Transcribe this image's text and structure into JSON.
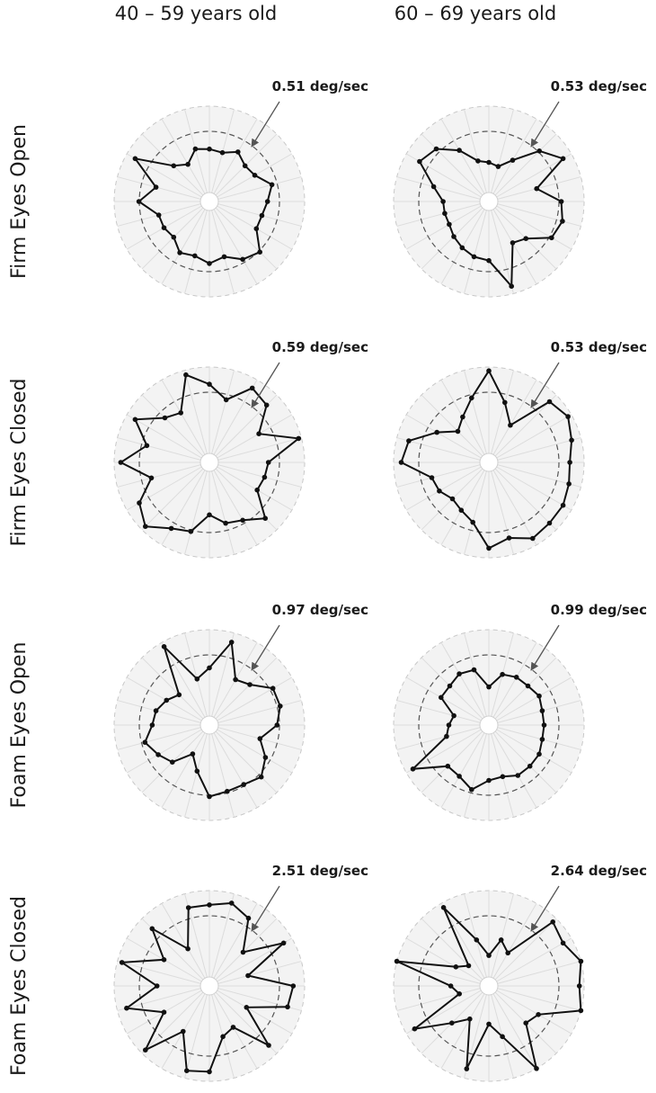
{
  "chart_data": {
    "type": "radar",
    "title": "",
    "columns": [
      "40 – 59 years old",
      "60 – 69 years old"
    ],
    "rows": [
      "Firm Eyes Open",
      "Firm Eyes Closed",
      "Foam Eyes Open",
      "Foam Eyes Closed"
    ],
    "grid": true,
    "inner_reference": "dashed circle",
    "panels": [
      {
        "row": "Firm Eyes Open",
        "column": "40 – 59 years old",
        "label": "0.51 deg/sec",
        "spokes": 24,
        "values": [
          0.55,
          0.53,
          0.6,
          0.53,
          0.55,
          0.68,
          0.61,
          0.57,
          0.57,
          0.75,
          0.7,
          0.6,
          0.65,
          0.59,
          0.62,
          0.53,
          0.55,
          0.55,
          0.74,
          0.58,
          0.9,
          0.53,
          0.45,
          0.57
        ]
      },
      {
        "row": "Firm Eyes Open",
        "column": "60 – 69 years old",
        "label": "0.53 deg/sec",
        "spokes": 24,
        "values": [
          0.41,
          0.38,
          0.5,
          0.75,
          0.9,
          0.52,
          0.76,
          0.8,
          0.76,
          0.55,
          0.5,
          0.92,
          0.62,
          0.6,
          0.56,
          0.52,
          0.48,
          0.48,
          0.48,
          0.6,
          0.84,
          0.78,
          0.62,
          0.44
        ]
      },
      {
        "row": "Firm Eyes Closed",
        "column": "40 – 59 years old",
        "label": "0.59 deg/sec",
        "spokes": 24,
        "values": [
          0.82,
          0.68,
          0.9,
          0.85,
          0.6,
          0.97,
          0.62,
          0.6,
          0.58,
          0.83,
          0.7,
          0.66,
          0.55,
          0.75,
          0.8,
          0.95,
          0.85,
          0.63,
          0.93,
          0.68,
          0.9,
          0.66,
          0.6,
          0.95
        ]
      },
      {
        "row": "Firm Eyes Closed",
        "column": "60 – 69 years old",
        "label": "0.53 deg/sec",
        "spokes": 24,
        "values": [
          0.96,
          0.65,
          0.45,
          0.9,
          0.96,
          0.9,
          0.85,
          0.87,
          0.9,
          0.9,
          0.92,
          0.82,
          0.9,
          0.65,
          0.58,
          0.54,
          0.6,
          0.62,
          0.92,
          0.87,
          0.63,
          0.46,
          0.55,
          0.7
        ]
      },
      {
        "row": "Foam Eyes Open",
        "column": "40 – 59 years old",
        "label": "0.97 deg/sec",
        "spokes": 24,
        "values": [
          0.6,
          0.9,
          0.55,
          0.6,
          0.77,
          0.77,
          0.71,
          0.55,
          0.68,
          0.77,
          0.72,
          0.72,
          0.75,
          0.5,
          0.35,
          0.55,
          0.62,
          0.7,
          0.6,
          0.58,
          0.52,
          0.45,
          0.95,
          0.5
        ]
      },
      {
        "row": "Foam Eyes Open",
        "column": "60 – 69 years old",
        "label": "0.99 deg/sec",
        "spokes": 24,
        "values": [
          0.4,
          0.55,
          0.58,
          0.58,
          0.61,
          0.58,
          0.58,
          0.58,
          0.61,
          0.61,
          0.61,
          0.56,
          0.58,
          0.7,
          0.62,
          0.61,
          0.92,
          0.46,
          0.42,
          0.38,
          0.58,
          0.58,
          0.62,
          0.6
        ]
      },
      {
        "row": "Foam Eyes Closed",
        "column": "40 – 59 years old",
        "label": "2.51 deg/sec",
        "spokes": 24,
        "values": [
          0.85,
          0.9,
          0.82,
          0.5,
          0.9,
          0.42,
          0.88,
          0.85,
          0.45,
          0.88,
          0.5,
          0.55,
          0.9,
          0.92,
          0.55,
          0.95,
          0.55,
          0.9,
          0.55,
          0.95,
          0.55,
          0.85,
          0.45,
          0.85
        ]
      },
      {
        "row": "Foam Eyes Closed",
        "column": "60 – 69 years old",
        "label": "2.64 deg/sec",
        "spokes": 24,
        "values": [
          0.32,
          0.5,
          0.4,
          0.95,
          0.9,
          1.0,
          0.95,
          1.0,
          0.6,
          0.55,
          1.0,
          0.55,
          0.4,
          0.9,
          0.4,
          0.55,
          0.9,
          0.32,
          0.4,
          1.0,
          0.4,
          0.3,
          0.95,
          0.5
        ]
      }
    ]
  }
}
